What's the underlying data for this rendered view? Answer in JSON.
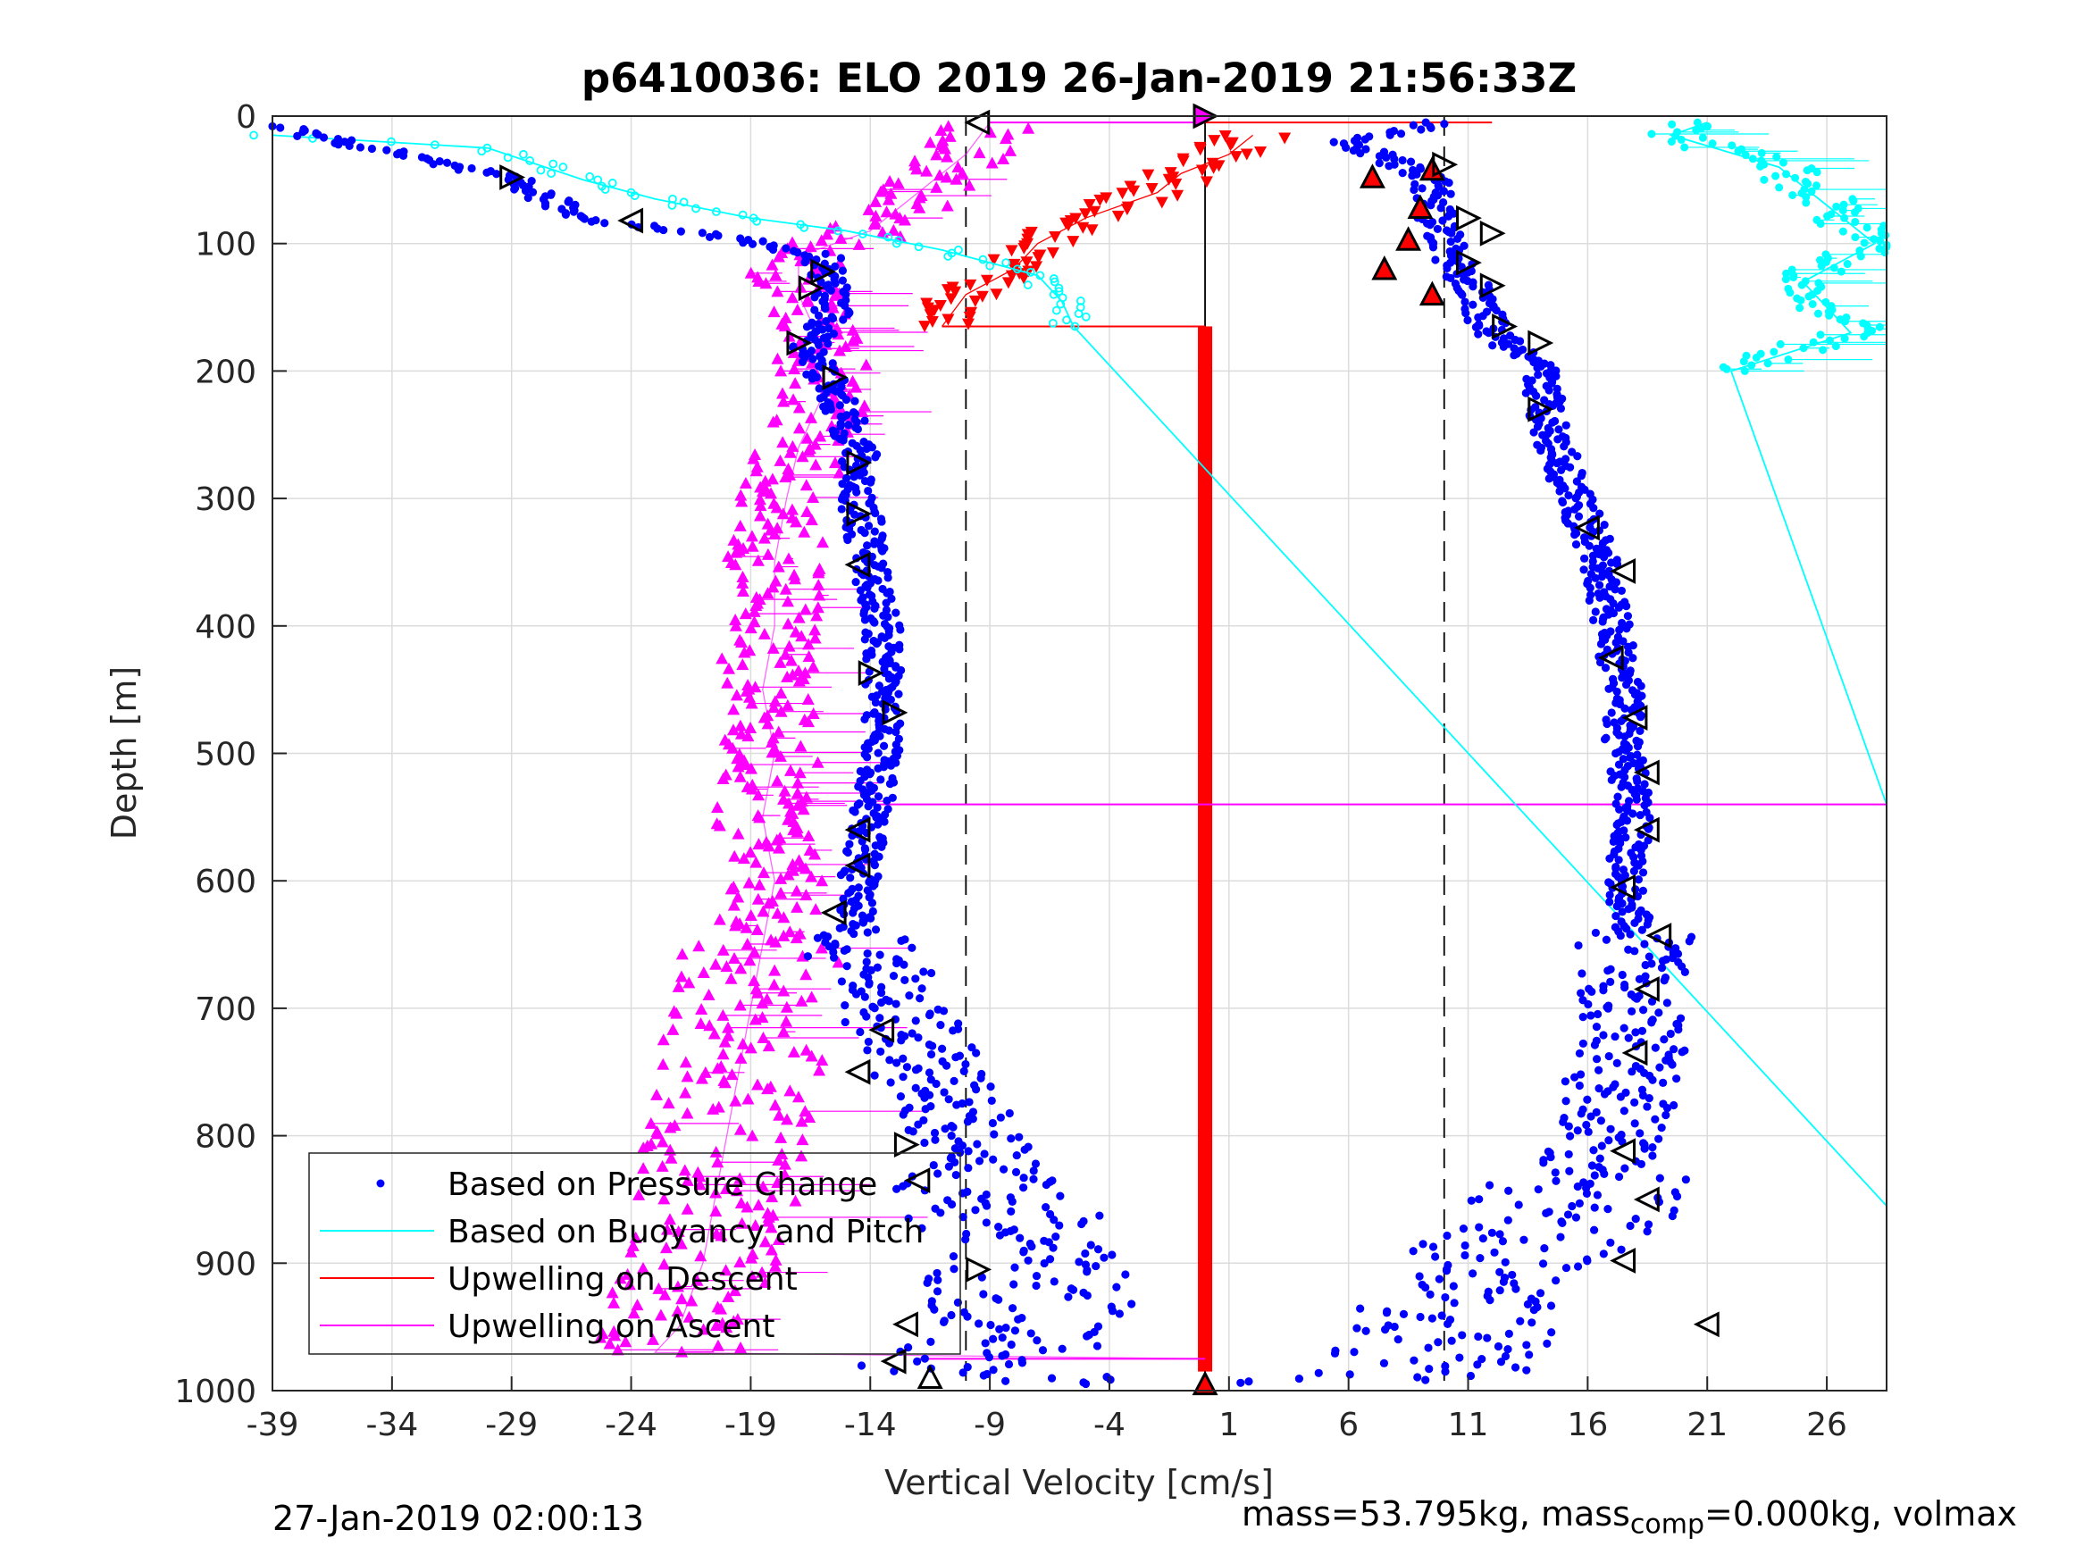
{
  "chart_data": {
    "type": "scatter",
    "title": "p6410036: ELO 2019 26-Jan-2019 21:56:33Z",
    "xlabel": "Vertical Velocity [cm/s]",
    "ylabel": "Depth [m]",
    "xlim": [
      -39,
      28.5
    ],
    "ylim": [
      0,
      1000
    ],
    "y_reversed": true,
    "grid": true,
    "xticks": [
      -39,
      -34,
      -29,
      -24,
      -19,
      -14,
      -9,
      -4,
      1,
      6,
      11,
      16,
      21,
      26
    ],
    "yticks": [
      0,
      100,
      200,
      300,
      400,
      500,
      600,
      700,
      800,
      900,
      1000
    ],
    "legend_position": "bottom-left",
    "legend": [
      {
        "label": "Based on Pressure Change",
        "color": "#0000ff",
        "style": "dot"
      },
      {
        "label": "Based on Buoyancy and Pitch",
        "color": "#00ffff",
        "style": "line"
      },
      {
        "label": "Upwelling on Descent",
        "color": "#ff0000",
        "style": "line"
      },
      {
        "label": "Upwelling on Ascent",
        "color": "#ff00ff",
        "style": "line"
      }
    ],
    "reference_lines": [
      {
        "orientation": "vertical",
        "x": -10,
        "style": "dashed",
        "color": "#000000"
      },
      {
        "orientation": "vertical",
        "x": 10,
        "style": "dashed",
        "color": "#000000"
      },
      {
        "orientation": "vertical",
        "x": 0,
        "style": "solid",
        "color": "#000000"
      }
    ],
    "series": [
      {
        "name": "Based on Pressure Change",
        "kind": "descent-profile",
        "color": "#0000ff",
        "points": [
          [
            -39,
            8
          ],
          [
            -29,
            50
          ],
          [
            -26,
            80
          ],
          [
            -20,
            95
          ],
          [
            -16,
            110
          ],
          [
            -15.5,
            150
          ],
          [
            -16.5,
            180
          ],
          [
            -15.5,
            220
          ],
          [
            -14.5,
            260
          ],
          [
            -14.5,
            300
          ],
          [
            -14,
            350
          ],
          [
            -13.5,
            400
          ],
          [
            -13.5,
            450
          ],
          [
            -13.5,
            500
          ],
          [
            -14,
            550
          ],
          [
            -14.5,
            600
          ],
          [
            -14.5,
            650
          ],
          [
            -13,
            700
          ],
          [
            -11.5,
            750
          ],
          [
            -10,
            800
          ],
          [
            -8.5,
            850
          ],
          [
            -8,
            900
          ],
          [
            -7,
            950
          ],
          [
            -11,
            985
          ],
          [
            -4,
            993
          ],
          [
            0,
            995
          ]
        ]
      },
      {
        "name": "Based on Pressure Change",
        "kind": "ascent-profile",
        "color": "#0000ff",
        "points": [
          [
            5,
            995
          ],
          [
            9,
            985
          ],
          [
            10,
            960
          ],
          [
            11,
            930
          ],
          [
            12,
            900
          ],
          [
            15,
            870
          ],
          [
            16,
            840
          ],
          [
            17,
            800
          ],
          [
            17.5,
            750
          ],
          [
            18,
            700
          ],
          [
            18,
            650
          ],
          [
            17.5,
            600
          ],
          [
            18,
            550
          ],
          [
            17.5,
            500
          ],
          [
            17.5,
            450
          ],
          [
            17,
            400
          ],
          [
            16.5,
            350
          ],
          [
            15.5,
            300
          ],
          [
            14.5,
            250
          ],
          [
            14,
            200
          ],
          [
            12,
            170
          ],
          [
            11,
            130
          ],
          [
            10,
            100
          ],
          [
            9.5,
            70
          ],
          [
            9.5,
            50
          ],
          [
            6,
            20
          ],
          [
            10,
            5
          ]
        ]
      },
      {
        "name": "Based on Buoyancy and Pitch",
        "kind": "descent",
        "color": "#00ffff",
        "points": [
          [
            -39,
            15
          ],
          [
            -30,
            25
          ],
          [
            -26,
            50
          ],
          [
            -23,
            65
          ],
          [
            -19,
            80
          ],
          [
            -15,
            90
          ],
          [
            -11,
            105
          ],
          [
            -7,
            125
          ],
          [
            -6,
            145
          ],
          [
            -5.5,
            165
          ],
          [
            28.5,
            855
          ]
        ]
      },
      {
        "name": "Based on Buoyancy and Pitch",
        "kind": "ascent",
        "color": "#00ffff",
        "points": [
          [
            28.5,
            540
          ],
          [
            22,
            200
          ],
          [
            27,
            170
          ],
          [
            25,
            130
          ],
          [
            28,
            100
          ],
          [
            26,
            70
          ],
          [
            24,
            40
          ],
          [
            19.5,
            15
          ],
          [
            21,
            5
          ]
        ]
      },
      {
        "name": "Upwelling on Descent",
        "color": "#ff0000",
        "points": [
          [
            -11,
            165
          ],
          [
            -10,
            140
          ],
          [
            -8,
            120
          ],
          [
            -7,
            100
          ],
          [
            -5,
            80
          ],
          [
            -2,
            60
          ],
          [
            -1,
            45
          ],
          [
            1,
            30
          ],
          [
            2,
            15
          ],
          [
            0,
            5
          ],
          [
            10,
            5
          ],
          [
            0,
            165
          ],
          [
            0,
            985
          ],
          [
            0,
            995
          ]
        ]
      },
      {
        "name": "Upwelling on Ascent",
        "color": "#ff00ff",
        "points": [
          [
            -9,
            5
          ],
          [
            -10,
            30
          ],
          [
            -12,
            60
          ],
          [
            -14,
            90
          ],
          [
            -17,
            110
          ],
          [
            -17,
            140
          ],
          [
            -16,
            180
          ],
          [
            -16,
            220
          ],
          [
            -17,
            260
          ],
          [
            -17.5,
            300
          ],
          [
            -18,
            350
          ],
          [
            -18,
            400
          ],
          [
            -18.5,
            450
          ],
          [
            -18,
            500
          ],
          [
            -18.5,
            550
          ],
          [
            -18,
            600
          ],
          [
            -18.5,
            650
          ],
          [
            -19,
            700
          ],
          [
            -19.5,
            750
          ],
          [
            -20,
            800
          ],
          [
            -20.5,
            850
          ],
          [
            -21,
            900
          ],
          [
            -22,
            950
          ],
          [
            -23,
            970
          ],
          [
            0,
            975
          ]
        ]
      }
    ],
    "markers": [
      {
        "x": -29,
        "y": 48,
        "shape": "tri-right"
      },
      {
        "x": -24,
        "y": 82,
        "shape": "tri-left"
      },
      {
        "x": -9.5,
        "y": 5,
        "shape": "tri-left"
      },
      {
        "x": -16,
        "y": 122,
        "shape": "tri-right"
      },
      {
        "x": -16.5,
        "y": 135,
        "shape": "tri-right"
      },
      {
        "x": -17,
        "y": 178,
        "shape": "tri-right"
      },
      {
        "x": -15.5,
        "y": 205,
        "shape": "tri-right"
      },
      {
        "x": -14.5,
        "y": 272,
        "shape": "tri-right"
      },
      {
        "x": -14.5,
        "y": 312,
        "shape": "tri-right"
      },
      {
        "x": -14.5,
        "y": 352,
        "shape": "tri-left"
      },
      {
        "x": -14,
        "y": 437,
        "shape": "tri-right"
      },
      {
        "x": -13,
        "y": 468,
        "shape": "tri-right"
      },
      {
        "x": -14.5,
        "y": 560,
        "shape": "tri-left"
      },
      {
        "x": -14.5,
        "y": 588,
        "shape": "tri-left"
      },
      {
        "x": -15.5,
        "y": 625,
        "shape": "tri-left"
      },
      {
        "x": -13.5,
        "y": 717,
        "shape": "tri-left"
      },
      {
        "x": -14.5,
        "y": 750,
        "shape": "tri-left"
      },
      {
        "x": -12.5,
        "y": 807,
        "shape": "tri-right"
      },
      {
        "x": -12,
        "y": 835,
        "shape": "tri-left"
      },
      {
        "x": -9.5,
        "y": 905,
        "shape": "tri-right"
      },
      {
        "x": -12.5,
        "y": 948,
        "shape": "tri-left"
      },
      {
        "x": -13,
        "y": 977,
        "shape": "tri-left"
      },
      {
        "x": -11.5,
        "y": 990,
        "shape": "tri-up"
      },
      {
        "x": 0,
        "y": 0,
        "shape": "tri-right",
        "fill": "#ff00ff"
      },
      {
        "x": 0,
        "y": 995,
        "shape": "tri-up",
        "fill": "#ff0000"
      },
      {
        "x": 7,
        "y": 48,
        "shape": "tri-up",
        "fill": "#ff0000"
      },
      {
        "x": 9,
        "y": 72,
        "shape": "tri-up",
        "fill": "#ff0000"
      },
      {
        "x": 8.5,
        "y": 97,
        "shape": "tri-up",
        "fill": "#ff0000"
      },
      {
        "x": 7.5,
        "y": 120,
        "shape": "tri-up",
        "fill": "#ff0000"
      },
      {
        "x": 9.5,
        "y": 140,
        "shape": "tri-up",
        "fill": "#ff0000"
      },
      {
        "x": 9.5,
        "y": 42,
        "shape": "tri-up",
        "fill": "#ff0000"
      },
      {
        "x": 10,
        "y": 38,
        "shape": "tri-right"
      },
      {
        "x": 11,
        "y": 80,
        "shape": "tri-right"
      },
      {
        "x": 12,
        "y": 92,
        "shape": "tri-right"
      },
      {
        "x": 11,
        "y": 115,
        "shape": "tri-right"
      },
      {
        "x": 12,
        "y": 133,
        "shape": "tri-right"
      },
      {
        "x": 12.5,
        "y": 165,
        "shape": "tri-right"
      },
      {
        "x": 14,
        "y": 178,
        "shape": "tri-right"
      },
      {
        "x": 14,
        "y": 230,
        "shape": "tri-right"
      },
      {
        "x": 16,
        "y": 323,
        "shape": "tri-left"
      },
      {
        "x": 17.5,
        "y": 357,
        "shape": "tri-left"
      },
      {
        "x": 17,
        "y": 425,
        "shape": "tri-left"
      },
      {
        "x": 18,
        "y": 472,
        "shape": "tri-left"
      },
      {
        "x": 18.5,
        "y": 515,
        "shape": "tri-left"
      },
      {
        "x": 18.5,
        "y": 560,
        "shape": "tri-left"
      },
      {
        "x": 17.5,
        "y": 605,
        "shape": "tri-left"
      },
      {
        "x": 19,
        "y": 643,
        "shape": "tri-left"
      },
      {
        "x": 18.5,
        "y": 685,
        "shape": "tri-left"
      },
      {
        "x": 18,
        "y": 735,
        "shape": "tri-left"
      },
      {
        "x": 17.5,
        "y": 812,
        "shape": "tri-left"
      },
      {
        "x": 18.5,
        "y": 850,
        "shape": "tri-left"
      },
      {
        "x": 17.5,
        "y": 898,
        "shape": "tri-left"
      },
      {
        "x": 21,
        "y": 948,
        "shape": "tri-left"
      }
    ],
    "hlines": [
      {
        "y": 165,
        "x0": -11,
        "x1": 0,
        "color": "#ff0000"
      },
      {
        "y": 5,
        "x0": -9,
        "x1": 0,
        "color": "#ff00ff"
      },
      {
        "y": 540,
        "x0": -14,
        "x1": 28.5,
        "color": "#ff00ff"
      },
      {
        "y": 975,
        "x0": -12,
        "x1": 0,
        "color": "#ff00ff"
      }
    ]
  },
  "footer": {
    "timestamp": "27-Jan-2019 02:00:13",
    "mass_prefix": "mass=53.795kg, mass",
    "mass_sub": "comp",
    "mass_suffix": "=0.000kg, volmax"
  }
}
